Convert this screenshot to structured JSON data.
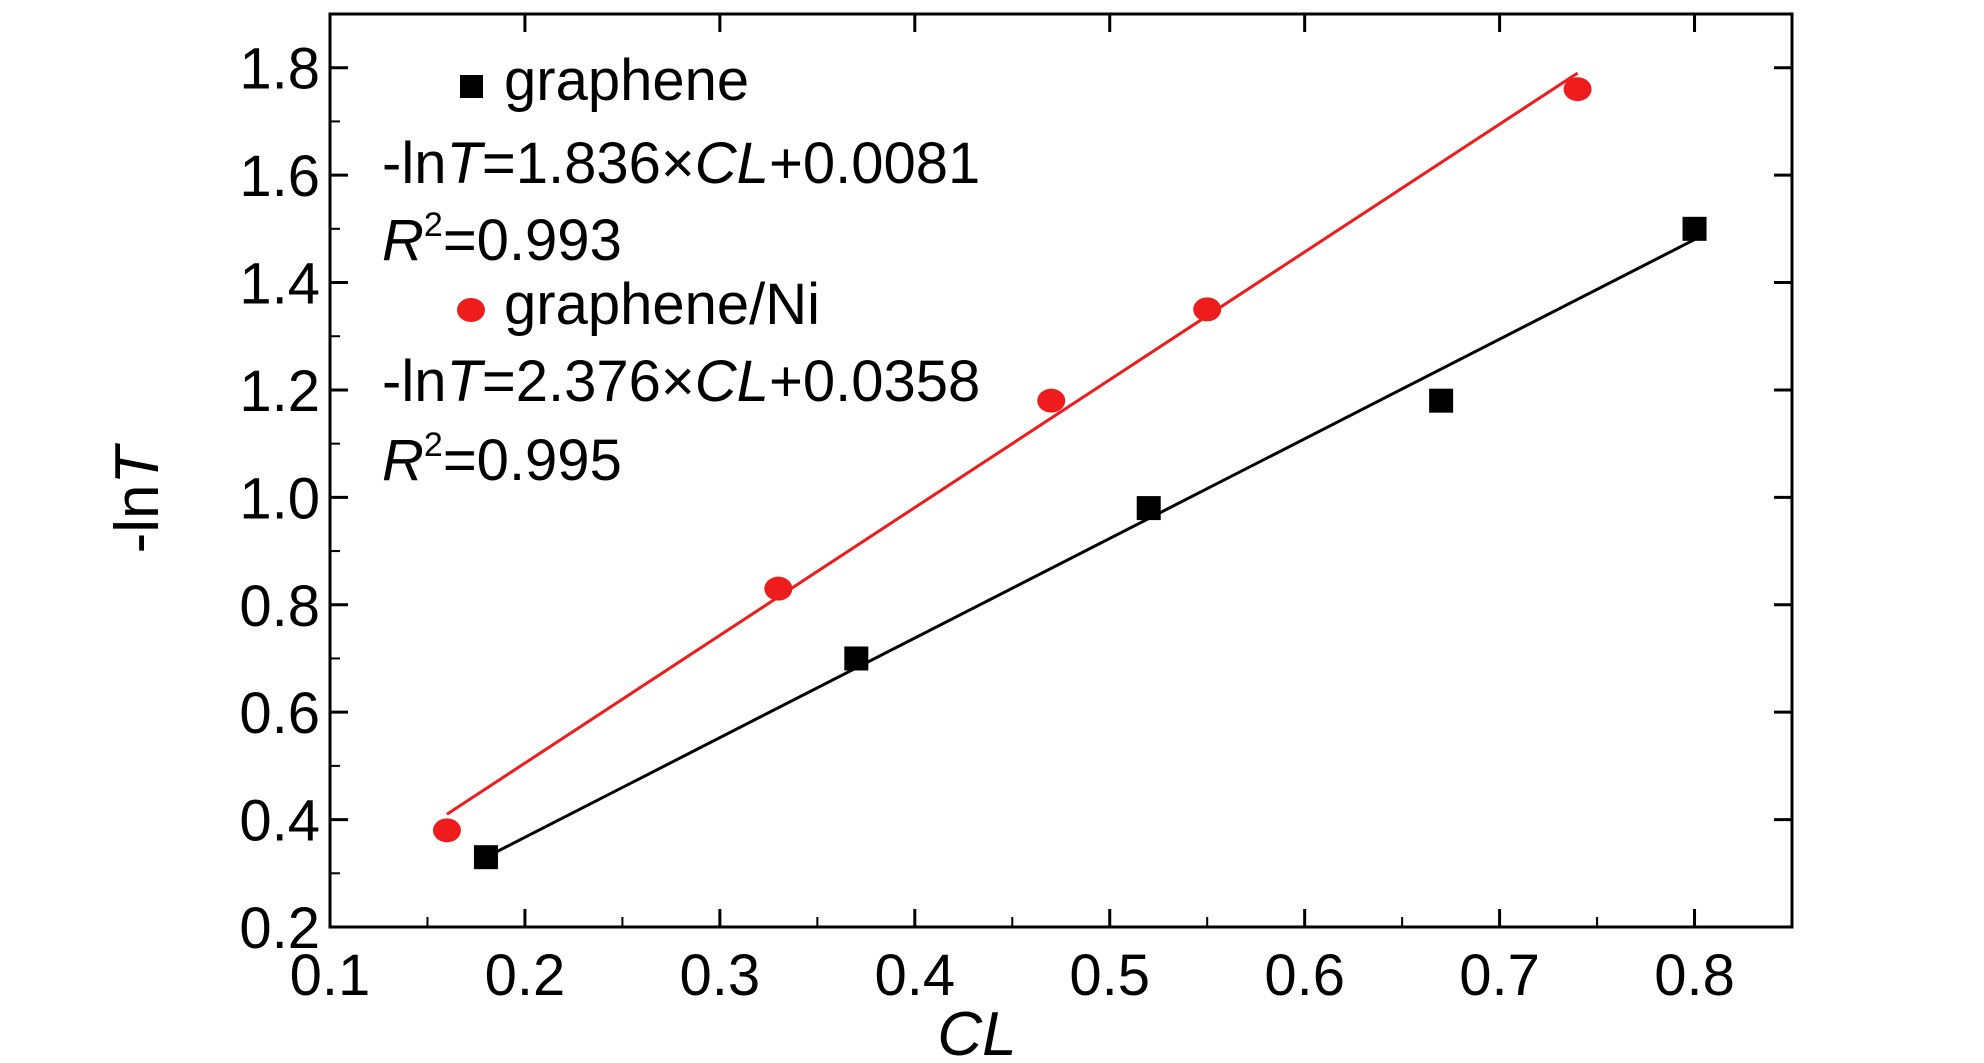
{
  "chart_data": {
    "type": "scatter",
    "xlabel": "CL",
    "ylabel": "-ln",
    "ylabel_italic": "T",
    "xlim": [
      0.1,
      0.85
    ],
    "ylim": [
      0.2,
      1.9
    ],
    "xticks": [
      0.1,
      0.2,
      0.3,
      0.4,
      0.5,
      0.6,
      0.7,
      0.8
    ],
    "xtick_labels": [
      "0.1",
      "0.2",
      "0.3",
      "0.4",
      "0.5",
      "0.6",
      "0.7",
      "0.8"
    ],
    "yticks": [
      0.2,
      0.4,
      0.6,
      0.8,
      1.0,
      1.2,
      1.4,
      1.6,
      1.8
    ],
    "ytick_labels": [
      "0.2",
      "0.4",
      "0.6",
      "0.8",
      "1.0",
      "1.2",
      "1.4",
      "1.6",
      "1.8"
    ],
    "legend_position": "top-left",
    "series": [
      {
        "name": "graphene",
        "marker": "square",
        "color": "#000000",
        "x": [
          0.18,
          0.37,
          0.52,
          0.67,
          0.8
        ],
        "y": [
          0.33,
          0.7,
          0.98,
          1.18,
          1.5
        ],
        "fit": {
          "x_range": [
            0.18,
            0.8
          ],
          "y_range": [
            0.33,
            1.48
          ]
        },
        "equation": {
          "pre": "-ln",
          "t": "T",
          "mid": "=1.836×",
          "cl": "CL",
          "post": "+0.0081"
        },
        "r2": {
          "r": "R",
          "sup": "2",
          "post": "=0.993"
        }
      },
      {
        "name": "graphene/Ni",
        "marker": "circle",
        "color": "#ee1c1c",
        "x": [
          0.16,
          0.33,
          0.47,
          0.55,
          0.74
        ],
        "y": [
          0.38,
          0.83,
          1.18,
          1.35,
          1.76
        ],
        "fit": {
          "x_range": [
            0.16,
            0.74
          ],
          "y_range": [
            0.41,
            1.79
          ]
        },
        "equation": {
          "pre": "-ln",
          "t": "T",
          "mid": "=2.376×",
          "cl": "CL",
          "post": "+0.0358"
        },
        "r2": {
          "r": "R",
          "sup": "2",
          "post": "=0.995"
        }
      }
    ]
  }
}
